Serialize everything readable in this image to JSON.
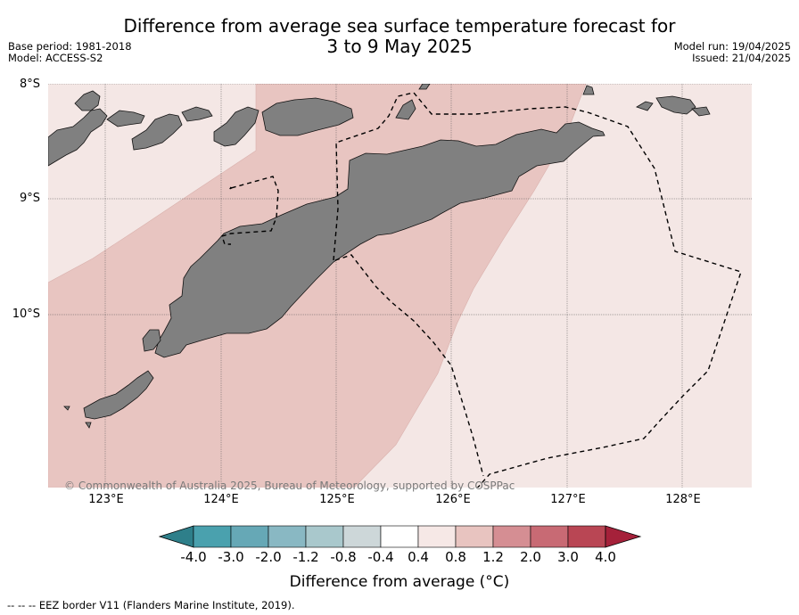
{
  "title_line1": "Difference from average sea surface temperature forecast for",
  "title_line2": "3 to 9 May 2025",
  "base_period": "Base period: 1981-2018",
  "model": "Model: ACCESS-S2",
  "model_run": "Model run: 19/04/2025",
  "issued": "Issued: 21/04/2025",
  "lat_labels": [
    "8°S",
    "9°S",
    "10°S"
  ],
  "lon_labels": [
    "123°E",
    "124°E",
    "125°E",
    "126°E",
    "127°E",
    "128°E"
  ],
  "copyright": "© Commonwealth of Australia 2025, Bureau of Meteorology, supported by COSPPac",
  "colorbar": {
    "ticks": [
      "-4.0",
      "-3.0",
      "-2.0",
      "-1.2",
      "-0.8",
      "-0.4",
      "0.4",
      "0.8",
      "1.2",
      "2.0",
      "3.0",
      "4.0"
    ],
    "colors": [
      "#2e7f8a",
      "#4aa1ae",
      "#66a8b6",
      "#89b8c3",
      "#a9c8cc",
      "#cdd7d9",
      "#ffffff",
      "#f6e8e6",
      "#e8c4c0",
      "#d58e93",
      "#c86a74",
      "#b94654",
      "#a5213a"
    ],
    "label": "Difference from average (°C)"
  },
  "legend": "-- -- -- EEZ border V11 (Flanders Marine Institute, 2019).",
  "map_colors": {
    "light_anomaly": "#f4e7e5",
    "mid_anomaly": "#e8c5c1",
    "land": "#808080"
  }
}
